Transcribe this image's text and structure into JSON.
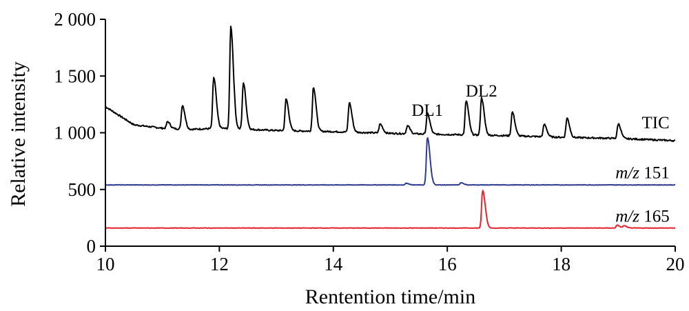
{
  "chart_data": {
    "type": "line",
    "xlabel": "Rentention time/min",
    "ylabel": "Relative intensity",
    "xlim": [
      10,
      20
    ],
    "ylim": [
      0,
      2000
    ],
    "x_ticks": [
      10,
      12,
      14,
      16,
      18,
      20
    ],
    "x_tick_labels": [
      "10",
      "12",
      "14",
      "16",
      "18",
      "20"
    ],
    "y_ticks": [
      0,
      500,
      1000,
      1500,
      2000
    ],
    "y_tick_labels": [
      "0",
      "500",
      "1 000",
      "1 500",
      "2 000"
    ],
    "grid": false,
    "legend": "none",
    "series": [
      {
        "name": "TIC",
        "color": "#000000",
        "baseline": [
          [
            10,
            1230
          ],
          [
            10.5,
            1070
          ],
          [
            11,
            1040
          ],
          [
            11.5,
            1030
          ],
          [
            12,
            1040
          ],
          [
            12.5,
            1030
          ],
          [
            13,
            1020
          ],
          [
            14,
            1010
          ],
          [
            15,
            995
          ],
          [
            16,
            985
          ],
          [
            17,
            975
          ],
          [
            18,
            960
          ],
          [
            19,
            950
          ],
          [
            20,
            930
          ]
        ],
        "peaks": [
          [
            11.09,
            60
          ],
          [
            11.35,
            210
          ],
          [
            11.9,
            450
          ],
          [
            12.2,
            900
          ],
          [
            12.42,
            410
          ],
          [
            13.17,
            280
          ],
          [
            13.65,
            390
          ],
          [
            14.28,
            260
          ],
          [
            14.82,
            80
          ],
          [
            15.3,
            70
          ],
          [
            15.65,
            180
          ],
          [
            16.33,
            300
          ],
          [
            16.6,
            330
          ],
          [
            17.14,
            210
          ],
          [
            17.7,
            110
          ],
          [
            18.1,
            170
          ],
          [
            19.0,
            130
          ]
        ]
      },
      {
        "name": "m/z 151",
        "color": "#2e3b8f",
        "baseline": [
          [
            10,
            540
          ],
          [
            20,
            540
          ]
        ],
        "peaks": [
          [
            15.65,
            420
          ],
          [
            16.24,
            20
          ],
          [
            15.28,
            15
          ]
        ]
      },
      {
        "name": "m/z 165",
        "color": "#e8222e",
        "baseline": [
          [
            10,
            160
          ],
          [
            20,
            160
          ]
        ],
        "peaks": [
          [
            16.62,
            330
          ],
          [
            18.98,
            25
          ],
          [
            19.1,
            20
          ]
        ]
      }
    ],
    "annotations": [
      {
        "text": "DL1",
        "x": 15.65,
        "y": 1150
      },
      {
        "text": "DL2",
        "x": 16.6,
        "y": 1320
      },
      {
        "text": "TIC",
        "x": 19.9,
        "y": 1040
      },
      {
        "text_italic": "m/z",
        "text": " 151",
        "x": 19.9,
        "y": 600
      },
      {
        "text_italic": "m/z",
        "text": " 165",
        "x": 19.9,
        "y": 215
      }
    ]
  }
}
